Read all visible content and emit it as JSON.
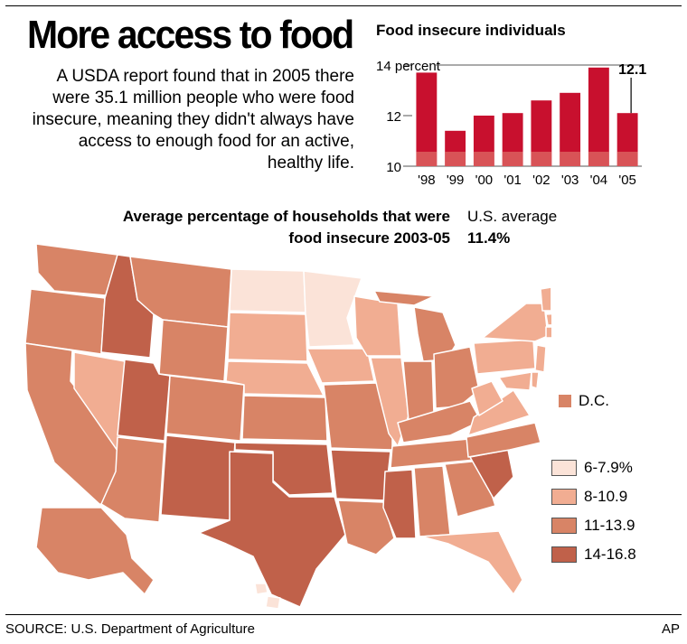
{
  "headline": "More access to food",
  "intro": "A USDA report found that in 2005 there were 35.1 million people who were food insecure, meaning they didn't always have access to enough food for an active, healthy life.",
  "map": {
    "title_line1": "Average percentage of households that were",
    "title_line2": "food insecure 2003-05",
    "us_average_label": "U.S. average",
    "us_average_value": "11.4%",
    "dc_label": "D.C.",
    "legend": [
      {
        "label": "6-7.9%",
        "color": "#fbe3d8"
      },
      {
        "label": "8-10.9",
        "color": "#f1ad92"
      },
      {
        "label": "11-13.9",
        "color": "#d88466"
      },
      {
        "label": "14-16.8",
        "color": "#c0614a"
      }
    ]
  },
  "source": "SOURCE: U.S. Department of Agriculture",
  "credit": "AP",
  "chart_data": {
    "type": "bar",
    "title": "Food insecure individuals",
    "categories": [
      "'98",
      "'99",
      "'00",
      "'01",
      "'02",
      "'03",
      "'04",
      "'05"
    ],
    "values": [
      13.7,
      11.4,
      12.0,
      12.1,
      12.6,
      12.9,
      13.9,
      12.1
    ],
    "ylim": [
      10,
      14
    ],
    "yticks": [
      "10",
      "12",
      "14 percent"
    ],
    "annotation": {
      "category": "'05",
      "label": "12.1"
    },
    "bar_color": "#c8102e",
    "grid": false
  }
}
